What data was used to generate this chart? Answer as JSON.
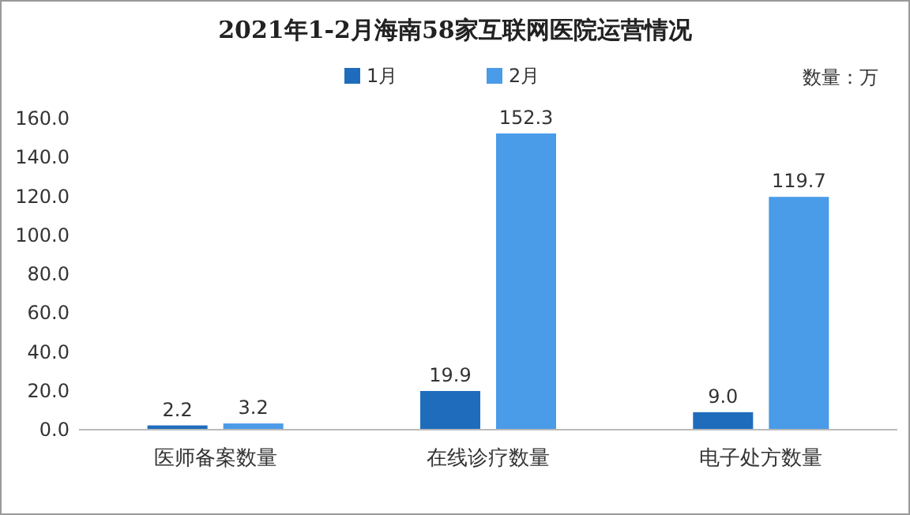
{
  "chart_data": {
    "type": "bar",
    "title": "2021年1-2月海南58家互联网医院运营情况",
    "annotations": [
      "数量：万"
    ],
    "categories": [
      "医师备案数量",
      "在线诊疗数量",
      "电子处方数量"
    ],
    "series": [
      {
        "name": "1月",
        "color": "#1f6cbd",
        "values": [
          2.2,
          19.9,
          9.0
        ],
        "value_labels": [
          "2.2",
          "19.9",
          "9.0"
        ]
      },
      {
        "name": "2月",
        "color": "#4a9be8",
        "values": [
          3.2,
          152.3,
          119.7
        ],
        "value_labels": [
          "3.2",
          "152.3",
          "119.7"
        ]
      }
    ],
    "ylim": [
      0,
      160
    ],
    "yticks": [
      {
        "value": 0,
        "label": "0.0"
      },
      {
        "value": 20,
        "label": "20.0"
      },
      {
        "value": 40,
        "label": "40.0"
      },
      {
        "value": 60,
        "label": "60.0"
      },
      {
        "value": 80,
        "label": "80.0"
      },
      {
        "value": 100,
        "label": "100.0"
      },
      {
        "value": 120,
        "label": "120.0"
      },
      {
        "value": 140,
        "label": "140.0"
      },
      {
        "value": 160,
        "label": "160.0"
      }
    ],
    "grid": false,
    "legend": "top"
  }
}
